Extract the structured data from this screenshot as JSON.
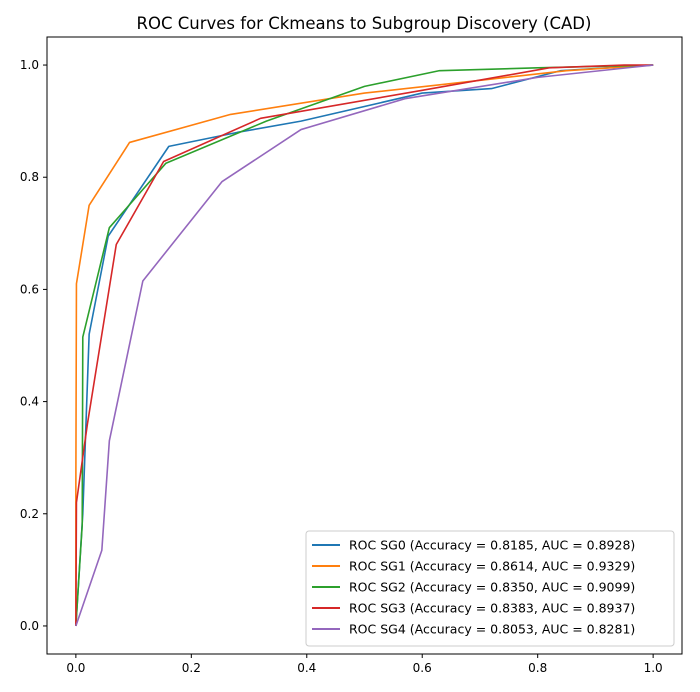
{
  "chart_data": {
    "type": "line",
    "title": "ROC Curves for Ckmeans to Subgroup Discovery (CAD)",
    "xlabel": "",
    "ylabel": "",
    "xlim": [
      -0.05,
      1.05
    ],
    "ylim": [
      -0.05,
      1.05
    ],
    "xticks": [
      0.0,
      0.2,
      0.4,
      0.6,
      0.8,
      1.0
    ],
    "yticks": [
      0.0,
      0.2,
      0.4,
      0.6,
      0.8,
      1.0
    ],
    "grid": false,
    "legend_position": "lower-right",
    "series": [
      {
        "name": "ROC SG0 (Accuracy = 0.8185, AUC = 0.8928)",
        "color": "#1f77b4",
        "x": [
          0.0,
          0.012,
          0.023,
          0.056,
          0.161,
          0.28,
          0.39,
          0.6,
          0.72,
          0.84,
          1.0
        ],
        "y": [
          0.0,
          0.2,
          0.52,
          0.695,
          0.855,
          0.88,
          0.9,
          0.95,
          0.958,
          0.99,
          1.0
        ]
      },
      {
        "name": "ROC SG1 (Accuracy = 0.8614, AUC = 0.9329)",
        "color": "#ff7f0e",
        "x": [
          0.0,
          0.0,
          0.001,
          0.023,
          0.093,
          0.268,
          0.5,
          0.72,
          0.85,
          1.0
        ],
        "y": [
          0.0,
          0.25,
          0.61,
          0.75,
          0.862,
          0.912,
          0.95,
          0.975,
          0.99,
          1.0
        ]
      },
      {
        "name": "ROC SG2 (Accuracy = 0.8350, AUC = 0.9099)",
        "color": "#2ca02c",
        "x": [
          0.0,
          0.011,
          0.012,
          0.058,
          0.156,
          0.33,
          0.5,
          0.63,
          0.8,
          1.0
        ],
        "y": [
          0.0,
          0.18,
          0.515,
          0.71,
          0.825,
          0.9,
          0.962,
          0.99,
          0.995,
          1.0
        ]
      },
      {
        "name": "ROC SG3 (Accuracy = 0.8383, AUC = 0.8937)",
        "color": "#d62728",
        "x": [
          0.0,
          0.001,
          0.02,
          0.07,
          0.152,
          0.32,
          0.6,
          0.82,
          0.95,
          1.0
        ],
        "y": [
          0.0,
          0.22,
          0.36,
          0.68,
          0.828,
          0.905,
          0.955,
          0.995,
          1.0,
          1.0
        ]
      },
      {
        "name": "ROC SG4 (Accuracy = 0.8053, AUC = 0.8281)",
        "color": "#9467bd",
        "x": [
          0.0,
          0.045,
          0.058,
          0.116,
          0.253,
          0.39,
          0.57,
          0.8,
          1.0
        ],
        "y": [
          0.0,
          0.135,
          0.33,
          0.615,
          0.792,
          0.885,
          0.94,
          0.978,
          1.0
        ]
      }
    ]
  }
}
